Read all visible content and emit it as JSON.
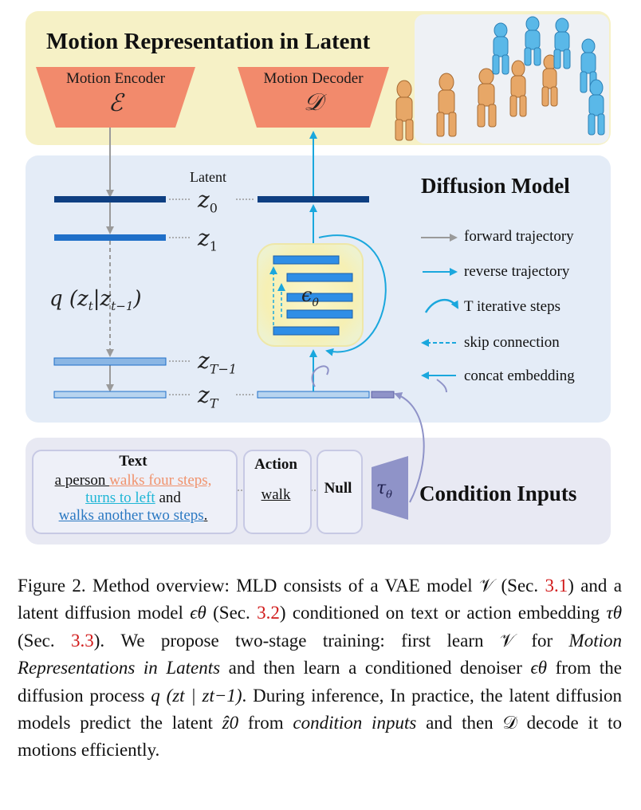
{
  "latent_section": {
    "title": "Motion Representation in Latent",
    "encoder_label": "Motion Encoder",
    "encoder_symbol": "ℰ",
    "decoder_label": "Motion Decoder",
    "decoder_symbol": "𝒟"
  },
  "diffusion_section": {
    "title": "Diffusion Model",
    "latent_label": "Latent",
    "z0": "z",
    "z0_sub": "0",
    "z1": "z",
    "z1_sub": "1",
    "zT1": "z",
    "zT1_sub": "T−1",
    "zT": "z",
    "zT_sub": "T",
    "q_formula": "q (z",
    "q_formula_sub1": "t",
    "q_formula_mid": "|z",
    "q_formula_sub2": "t−1",
    "q_formula_end": ")",
    "eps": "ϵ",
    "eps_sub": "θ"
  },
  "legend": {
    "forward": "forward trajectory",
    "reverse": "reverse trajectory",
    "iterative": "T iterative steps",
    "skip": "skip connection",
    "concat": "concat embedding"
  },
  "condition_section": {
    "title": "Condition Inputs",
    "text_header": "Text",
    "text_line1_a": "a person ",
    "text_line1_b": "walks four steps,",
    "text_line2_a": "turns to left",
    "text_line2_b": " and",
    "text_line3": "walks another two steps",
    "text_line3_end": ".",
    "action_header": "Action",
    "action_value": "walk",
    "null_label": "Null",
    "tau": "τ",
    "tau_sub": "θ"
  },
  "caption": {
    "p1": "Figure 2.  Method overview: MLD consists of a VAE model ",
    "V1": "𝒱",
    "p2": " (Sec. ",
    "ref1": "3.1",
    "p3": ") and a latent diffusion model ",
    "eps": "ϵθ",
    "p4": " (Sec. ",
    "ref2": "3.2",
    "p5": ") conditioned on text or action embedding ",
    "tau": "τθ",
    "p6": " (Sec. ",
    "ref3": "3.3",
    "p7": "). We propose two-stage training: first learn ",
    "V2": "𝒱",
    "p8": " for ",
    "it1": "Motion Representations in Latents",
    "p9": " and then learn a conditioned denoiser ",
    "eps2": "ϵθ",
    "p10": " from the diffusion process ",
    "q": "q (zt | zt−1)",
    "p11": ".  During inference, In practice, the latent diffusion models predict the latent ",
    "zhat": "ẑ0",
    "p12": " from ",
    "it2": "condition inputs",
    "p13": " and then ",
    "D": "𝒟",
    "p14": " decode it to motions efficiently."
  },
  "colors": {
    "top_panel": "#f6f1c6",
    "mid_panel": "#e4ecf7",
    "bot_panel": "#e8e9f3",
    "trapezoid": "#f28a6c",
    "dark_bar": "#0e3f82",
    "mid_bar": "#1f6fc8",
    "light_bar": "#8ab6e4",
    "reverse_arrow": "#1aa7dd",
    "forward_arrow": "#9a9a9a",
    "orange_text": "#f0926c",
    "cyan_text": "#1fb6d6",
    "blue_text": "#2a78c2",
    "ref_red": "#d11b1b"
  }
}
